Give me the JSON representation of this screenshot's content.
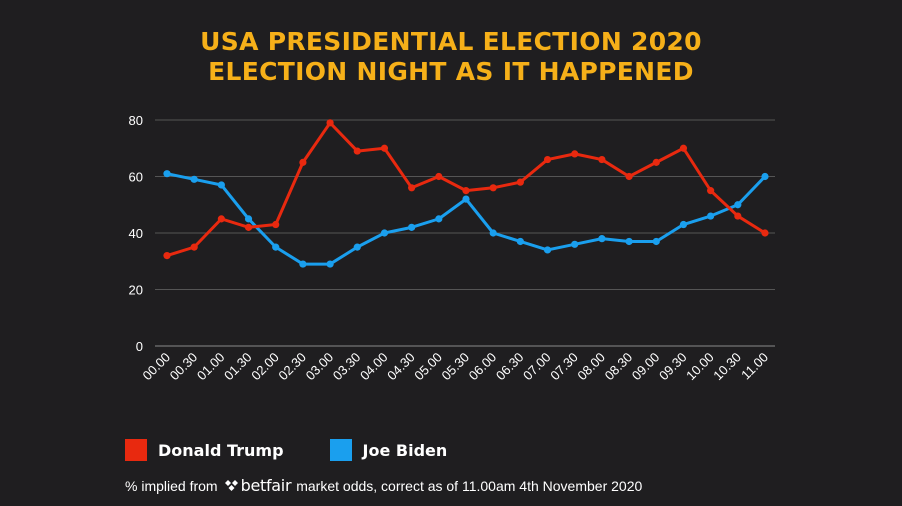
{
  "title": {
    "line1": "USA PRESIDENTIAL ELECTION 2020",
    "line2": "ELECTION NIGHT AS IT HAPPENED"
  },
  "chart_data": {
    "type": "line",
    "title": "USA PRESIDENTIAL ELECTION 2020 ELECTION NIGHT AS IT HAPPENED",
    "xlabel": "",
    "ylabel": "",
    "ylim": [
      0,
      80
    ],
    "yticks": [
      0,
      20,
      40,
      60,
      80
    ],
    "grid": true,
    "legend": "bottom-left",
    "categories": [
      "00.00",
      "00.30",
      "01.00",
      "01.30",
      "02.00",
      "02.30",
      "03.00",
      "03.30",
      "04.00",
      "04.30",
      "05.00",
      "05.30",
      "06.00",
      "06.30",
      "07.00",
      "07.30",
      "08.00",
      "08.30",
      "09.00",
      "09.30",
      "10.00",
      "10.30",
      "11.00"
    ],
    "series": [
      {
        "name": "Donald Trump",
        "color": "#e8290f",
        "values": [
          32,
          35,
          45,
          42,
          43,
          65,
          79,
          69,
          70,
          56,
          60,
          55,
          56,
          58,
          66,
          68,
          66,
          60,
          65,
          70,
          55,
          46,
          40
        ]
      },
      {
        "name": "Joe Biden",
        "color": "#1a9fee",
        "values": [
          61,
          59,
          57,
          45,
          35,
          29,
          29,
          35,
          40,
          42,
          45,
          52,
          40,
          37,
          34,
          36,
          38,
          37,
          37,
          43,
          46,
          50,
          60
        ]
      }
    ]
  },
  "legend": {
    "trump_label": "Donald Trump",
    "biden_label": "Joe Biden"
  },
  "footnote": {
    "prefix": "% implied from",
    "brand": "betfair",
    "suffix": "market odds, correct as of 11.00am 4th November 2020"
  },
  "colors": {
    "background": "#1f1e20",
    "title": "#f6b019",
    "trump": "#e8290f",
    "biden": "#1a9fee",
    "grid": "#555555"
  }
}
